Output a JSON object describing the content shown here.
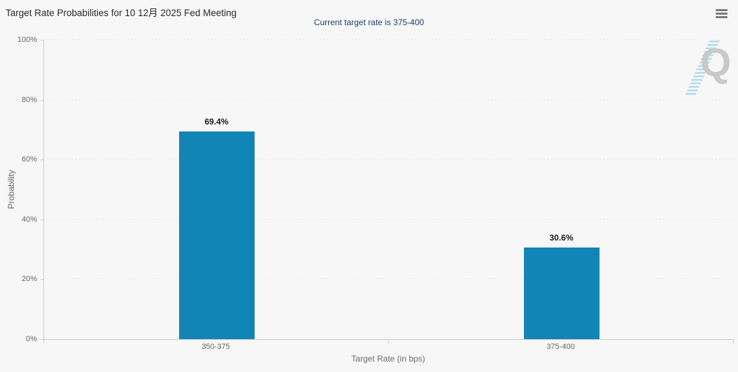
{
  "header": {
    "title": "Target Rate Probabilities for 10 12月 2025 Fed Meeting",
    "subtitle": "Current target rate is 375-400"
  },
  "menu": {
    "icon": "hamburger-menu-icon"
  },
  "watermark": {
    "letter": "Q"
  },
  "chart_data": {
    "type": "bar",
    "title": "Target Rate Probabilities for 10 12月 2025 Fed Meeting",
    "subtitle": "Current target rate is 375-400",
    "categories": [
      "350-375",
      "375-400"
    ],
    "values": [
      69.4,
      30.6
    ],
    "value_labels": [
      "69.4%",
      "30.6%"
    ],
    "xlabel": "Target Rate (in bps)",
    "ylabel": "Probability",
    "ylim": [
      0,
      100
    ],
    "ytick_step": 20,
    "ytick_labels": [
      "0%",
      "20%",
      "40%",
      "60%",
      "80%",
      "100%"
    ],
    "grid": "dotted-horizontal",
    "legend": "none",
    "bar_color": "#1185b5"
  },
  "colors": {
    "background": "#f7f7f7",
    "title_text": "#26282a",
    "subtitle_text": "#1d3e6e",
    "axis_line": "#cccccc",
    "grid_line": "#dedede",
    "tick_text": "#666666",
    "bar": "#1185b5",
    "data_label": "#1a1a1a",
    "watermark_gray": "#c9c9c9",
    "watermark_blue": "#a5d8ee"
  }
}
